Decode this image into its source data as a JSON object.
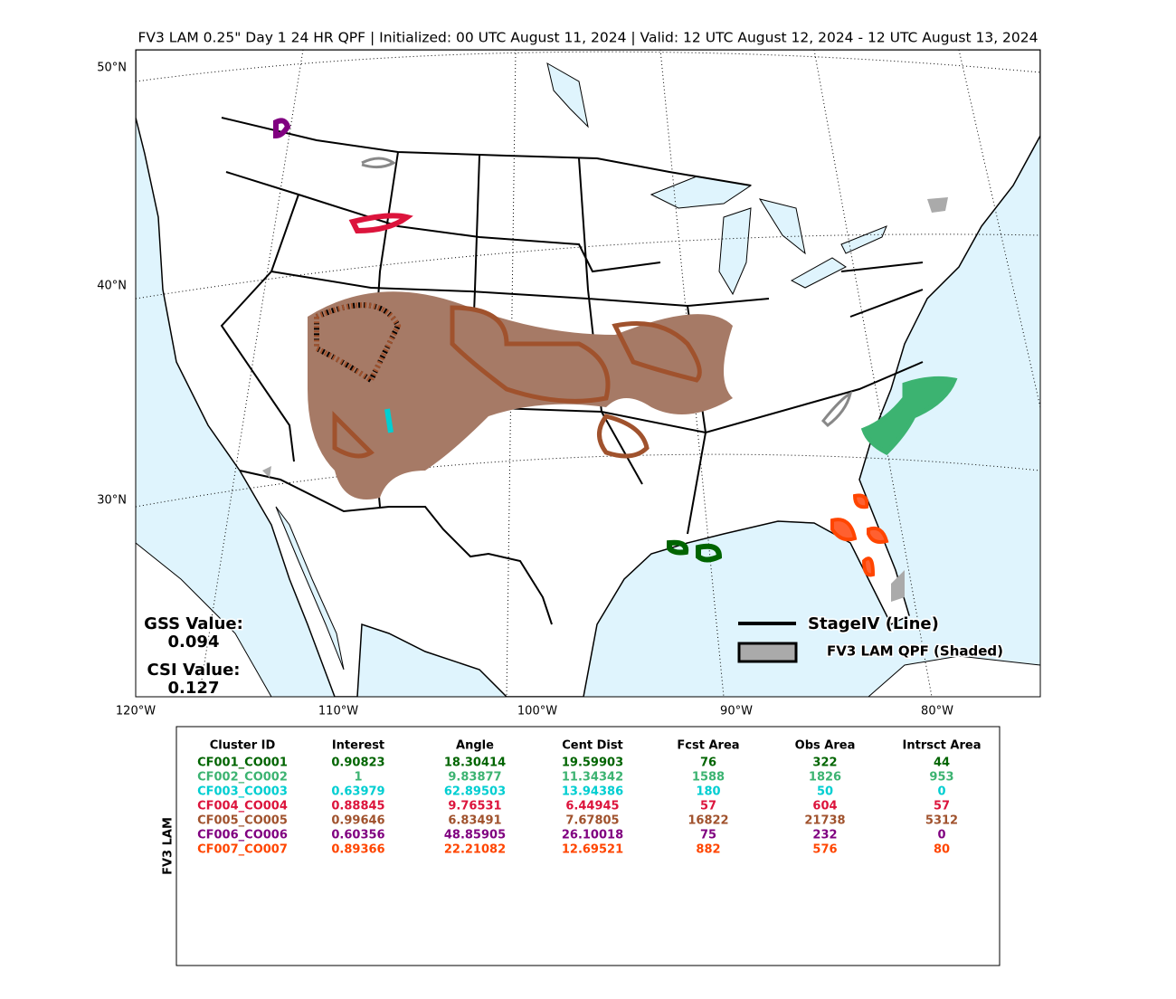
{
  "header": {
    "title": "FV3 LAM 0.25\" Day 1 24 HR QPF | Initialized: 00 UTC August 11, 2024 | Valid: 12 UTC August 12, 2024 - 12 UTC August 13, 2024"
  },
  "map": {
    "lat_labels": [
      "50°N",
      "40°N",
      "30°N"
    ],
    "lon_labels": [
      "120°W",
      "110°W",
      "100°W",
      "90°W",
      "80°W"
    ],
    "scores": {
      "gss_label": "GSS Value:",
      "gss_value": "0.094",
      "csi_label": "CSI Value:",
      "csi_value": "0.127"
    },
    "legend": {
      "line": "StageIV (Line)",
      "shaded": "FV3 LAM QPF (Shaded)"
    }
  },
  "table": {
    "side_label": "FV3 LAM",
    "columns": [
      "Cluster ID",
      "Interest",
      "Angle",
      "Cent Dist",
      "Fcst Area",
      "Obs Area",
      "Intrsct Area"
    ],
    "rows": [
      {
        "color": "#006400",
        "cells": [
          "CF001_CO001",
          "0.90823",
          "18.30414",
          "19.59903",
          "76",
          "322",
          "44"
        ]
      },
      {
        "color": "#3cb371",
        "cells": [
          "CF002_CO002",
          "1",
          "9.83877",
          "11.34342",
          "1588",
          "1826",
          "953"
        ]
      },
      {
        "color": "#00ced1",
        "cells": [
          "CF003_CO003",
          "0.63979",
          "62.89503",
          "13.94386",
          "180",
          "50",
          "0"
        ]
      },
      {
        "color": "#dc143c",
        "cells": [
          "CF004_CO004",
          "0.88845",
          "9.76531",
          "6.44945",
          "57",
          "604",
          "57"
        ]
      },
      {
        "color": "#a0522d",
        "cells": [
          "CF005_CO005",
          "0.99646",
          "6.83491",
          "7.67805",
          "16822",
          "21738",
          "5312"
        ]
      },
      {
        "color": "#800080",
        "cells": [
          "CF006_CO006",
          "0.60356",
          "48.85905",
          "26.10018",
          "75",
          "232",
          "0"
        ]
      },
      {
        "color": "#ff4500",
        "cells": [
          "CF007_CO007",
          "0.89366",
          "22.21082",
          "12.69521",
          "882",
          "576",
          "80"
        ]
      }
    ]
  }
}
